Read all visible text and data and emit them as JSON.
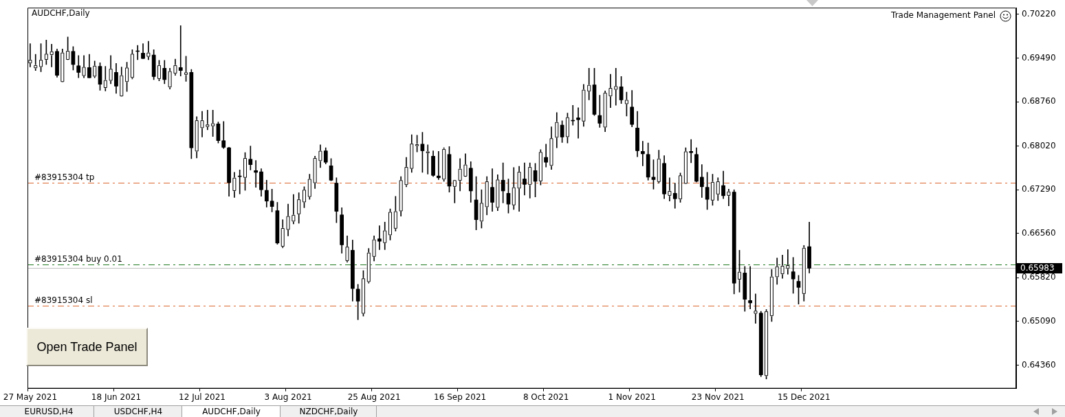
{
  "chart_data": {
    "type": "candlestick",
    "title": "AUDCHF,Daily",
    "categories": [
      "27 May 2021",
      null,
      null,
      null,
      null,
      null,
      null,
      null,
      null,
      null,
      null,
      null,
      null,
      null,
      null,
      null,
      "18 Jun 2021",
      null,
      null,
      null,
      null,
      null,
      null,
      null,
      null,
      null,
      null,
      null,
      null,
      null,
      null,
      null,
      "12 Jul 2021",
      null,
      null,
      null,
      null,
      null,
      null,
      null,
      null,
      null,
      null,
      null,
      null,
      null,
      null,
      null,
      "3 Aug 2021",
      null,
      null,
      null,
      null,
      null,
      null,
      null,
      null,
      null,
      null,
      null,
      null,
      null,
      null,
      null,
      "25 Aug 2021",
      null,
      null,
      null,
      null,
      null,
      null,
      null,
      null,
      null,
      null,
      null,
      null,
      null,
      null,
      null,
      "16 Sep 2021",
      null,
      null,
      null,
      null,
      null,
      null,
      null,
      null,
      null,
      null,
      null,
      null,
      null,
      null,
      null,
      "8 Oct 2021",
      null,
      null,
      null,
      null,
      null,
      null,
      null,
      null,
      null,
      null,
      null,
      null,
      null,
      null,
      null,
      "1 Nov 2021",
      null,
      null,
      null,
      null,
      null,
      null,
      null,
      null,
      null,
      null,
      null,
      null,
      null,
      null,
      null,
      "23 Nov 2021",
      null,
      null,
      null,
      null,
      null,
      null,
      null,
      null,
      null,
      null,
      null,
      null,
      null,
      null,
      null,
      "15 Dec 2021",
      null,
      null,
      null,
      null,
      null,
      null,
      null,
      null,
      null,
      null,
      null,
      null,
      null,
      null,
      null,
      null,
      null,
      null,
      null,
      null,
      null,
      null,
      null,
      null,
      null,
      null,
      null,
      null,
      null,
      null,
      null,
      null,
      null,
      null,
      null,
      null,
      null,
      null,
      null
    ],
    "ohlc": [
      [
        0.694,
        0.6973,
        0.6934,
        0.6946
      ],
      [
        0.6932,
        0.6955,
        0.6928,
        0.6937
      ],
      [
        0.6934,
        0.6973,
        0.6926,
        0.6946
      ],
      [
        0.6946,
        0.6979,
        0.6938,
        0.6956
      ],
      [
        0.6954,
        0.6972,
        0.6934,
        0.696
      ],
      [
        0.696,
        0.6964,
        0.6917,
        0.692
      ],
      [
        0.6909,
        0.6964,
        0.6909,
        0.6958
      ],
      [
        0.6946,
        0.6984,
        0.6946,
        0.6961
      ],
      [
        0.696,
        0.6968,
        0.6929,
        0.6938
      ],
      [
        0.6936,
        0.6953,
        0.6916,
        0.6925
      ],
      [
        0.6919,
        0.6953,
        0.6916,
        0.6934
      ],
      [
        0.6933,
        0.6955,
        0.6916,
        0.6916
      ],
      [
        0.6918,
        0.6944,
        0.6916,
        0.6936
      ],
      [
        0.6935,
        0.6941,
        0.6895,
        0.6905
      ],
      [
        0.6899,
        0.6935,
        0.6894,
        0.6912
      ],
      [
        0.6911,
        0.6953,
        0.6906,
        0.6931
      ],
      [
        0.6925,
        0.694,
        0.689,
        0.6902
      ],
      [
        0.6885,
        0.6934,
        0.6885,
        0.692
      ],
      [
        0.6909,
        0.6942,
        0.6893,
        0.6933
      ],
      [
        0.6916,
        0.6963,
        0.6914,
        0.6956
      ],
      [
        0.6961,
        0.697,
        0.6946,
        0.696
      ],
      [
        0.6957,
        0.6973,
        0.6948,
        0.6948
      ],
      [
        0.6951,
        0.6977,
        0.6946,
        0.6958
      ],
      [
        0.6954,
        0.6963,
        0.6913,
        0.6918
      ],
      [
        0.6914,
        0.6945,
        0.6911,
        0.6937
      ],
      [
        0.6932,
        0.6945,
        0.6906,
        0.6913
      ],
      [
        0.69,
        0.6932,
        0.6897,
        0.6927
      ],
      [
        0.6923,
        0.6947,
        0.692,
        0.6937
      ],
      [
        0.6933,
        0.7003,
        0.6919,
        0.6928
      ],
      [
        0.6921,
        0.6952,
        0.691,
        0.6925
      ],
      [
        0.6925,
        0.693,
        0.6781,
        0.6799
      ],
      [
        0.6793,
        0.6851,
        0.6782,
        0.6845
      ],
      [
        0.6832,
        0.686,
        0.6817,
        0.6845
      ],
      [
        0.6834,
        0.6862,
        0.6829,
        0.6838
      ],
      [
        0.6835,
        0.6862,
        0.6818,
        0.684
      ],
      [
        0.6839,
        0.6842,
        0.6807,
        0.6811
      ],
      [
        0.6811,
        0.6843,
        0.6798,
        0.68
      ],
      [
        0.6799,
        0.68,
        0.6718,
        0.6741
      ],
      [
        0.6727,
        0.6758,
        0.6716,
        0.6749
      ],
      [
        0.6752,
        0.6762,
        0.6722,
        0.6751
      ],
      [
        0.6749,
        0.6791,
        0.6728,
        0.6782
      ],
      [
        0.678,
        0.6802,
        0.6762,
        0.6771
      ],
      [
        0.6761,
        0.6778,
        0.6733,
        0.6758
      ],
      [
        0.6759,
        0.6764,
        0.6718,
        0.6729
      ],
      [
        0.6728,
        0.6745,
        0.67,
        0.671
      ],
      [
        0.671,
        0.673,
        0.6692,
        0.6701
      ],
      [
        0.6694,
        0.6708,
        0.6638,
        0.664
      ],
      [
        0.6634,
        0.6679,
        0.6632,
        0.6665
      ],
      [
        0.6662,
        0.6705,
        0.6652,
        0.6685
      ],
      [
        0.6676,
        0.6721,
        0.6672,
        0.6687
      ],
      [
        0.6688,
        0.6724,
        0.6673,
        0.6713
      ],
      [
        0.6708,
        0.6734,
        0.6699,
        0.6729
      ],
      [
        0.6717,
        0.6755,
        0.6713,
        0.6747
      ],
      [
        0.674,
        0.6785,
        0.6731,
        0.6782
      ],
      [
        0.6777,
        0.6804,
        0.6766,
        0.6794
      ],
      [
        0.6794,
        0.6799,
        0.6772,
        0.6775
      ],
      [
        0.6769,
        0.6781,
        0.6744,
        0.6745
      ],
      [
        0.674,
        0.6749,
        0.6674,
        0.6693
      ],
      [
        0.6687,
        0.6699,
        0.6623,
        0.6637
      ],
      [
        0.661,
        0.6652,
        0.6608,
        0.6634
      ],
      [
        0.6628,
        0.6645,
        0.6543,
        0.6564
      ],
      [
        0.6563,
        0.6571,
        0.6512,
        0.6543
      ],
      [
        0.6522,
        0.6594,
        0.6518,
        0.6581
      ],
      [
        0.6575,
        0.6631,
        0.6573,
        0.6624
      ],
      [
        0.6617,
        0.6652,
        0.661,
        0.6646
      ],
      [
        0.6647,
        0.6669,
        0.6629,
        0.6643
      ],
      [
        0.664,
        0.6675,
        0.6629,
        0.6661
      ],
      [
        0.6653,
        0.6697,
        0.6645,
        0.6692
      ],
      [
        0.6664,
        0.6718,
        0.666,
        0.6693
      ],
      [
        0.6693,
        0.6751,
        0.6685,
        0.6745
      ],
      [
        0.6737,
        0.6783,
        0.6734,
        0.6767
      ],
      [
        0.6764,
        0.6821,
        0.6758,
        0.6806
      ],
      [
        0.6802,
        0.682,
        0.6792,
        0.6805
      ],
      [
        0.6805,
        0.6825,
        0.6758,
        0.6794
      ],
      [
        0.679,
        0.6804,
        0.6755,
        0.6793
      ],
      [
        0.6785,
        0.6794,
        0.6751,
        0.6753
      ],
      [
        0.6752,
        0.6793,
        0.6746,
        0.6749
      ],
      [
        0.6746,
        0.6799,
        0.6743,
        0.6797
      ],
      [
        0.6788,
        0.6801,
        0.6725,
        0.6735
      ],
      [
        0.6734,
        0.6745,
        0.6707,
        0.6745
      ],
      [
        0.6744,
        0.6781,
        0.6727,
        0.6764
      ],
      [
        0.6751,
        0.6789,
        0.6751,
        0.6771
      ],
      [
        0.6765,
        0.6776,
        0.6708,
        0.6727
      ],
      [
        0.6712,
        0.6751,
        0.6662,
        0.6679
      ],
      [
        0.6676,
        0.6729,
        0.6665,
        0.6707
      ],
      [
        0.67,
        0.6751,
        0.6687,
        0.6743
      ],
      [
        0.6733,
        0.6764,
        0.6693,
        0.6708
      ],
      [
        0.6699,
        0.6754,
        0.6694,
        0.6746
      ],
      [
        0.6745,
        0.6774,
        0.6707,
        0.6727
      ],
      [
        0.6723,
        0.6747,
        0.669,
        0.6705
      ],
      [
        0.6703,
        0.6766,
        0.6696,
        0.6733
      ],
      [
        0.6731,
        0.6768,
        0.6693,
        0.6759
      ],
      [
        0.6747,
        0.6774,
        0.672,
        0.6738
      ],
      [
        0.6737,
        0.6774,
        0.6715,
        0.6767
      ],
      [
        0.6761,
        0.6773,
        0.6717,
        0.6743
      ],
      [
        0.6743,
        0.6796,
        0.6737,
        0.6792
      ],
      [
        0.6783,
        0.6805,
        0.6767,
        0.6775
      ],
      [
        0.6769,
        0.6834,
        0.6763,
        0.6815
      ],
      [
        0.6816,
        0.6858,
        0.6799,
        0.6842
      ],
      [
        0.6837,
        0.6844,
        0.6808,
        0.6817
      ],
      [
        0.6817,
        0.6857,
        0.6807,
        0.685
      ],
      [
        0.6845,
        0.687,
        0.6837,
        0.6844
      ],
      [
        0.6849,
        0.6866,
        0.6815,
        0.6846
      ],
      [
        0.6843,
        0.6905,
        0.6835,
        0.6896
      ],
      [
        0.6893,
        0.6932,
        0.6879,
        0.6904
      ],
      [
        0.6904,
        0.6932,
        0.6853,
        0.6855
      ],
      [
        0.6853,
        0.6887,
        0.6833,
        0.684
      ],
      [
        0.6833,
        0.6894,
        0.6826,
        0.6891
      ],
      [
        0.6885,
        0.6922,
        0.6866,
        0.6899
      ],
      [
        0.6896,
        0.6932,
        0.687,
        0.6902
      ],
      [
        0.6901,
        0.6918,
        0.6873,
        0.6879
      ],
      [
        0.6872,
        0.6892,
        0.6852,
        0.6879
      ],
      [
        0.6867,
        0.6895,
        0.6834,
        0.6838
      ],
      [
        0.6832,
        0.686,
        0.6784,
        0.6794
      ],
      [
        0.6793,
        0.681,
        0.6769,
        0.6789
      ],
      [
        0.6788,
        0.6807,
        0.6745,
        0.675
      ],
      [
        0.675,
        0.6779,
        0.673,
        0.6746
      ],
      [
        0.6742,
        0.6795,
        0.674,
        0.6781
      ],
      [
        0.6773,
        0.6786,
        0.6714,
        0.6722
      ],
      [
        0.6719,
        0.6749,
        0.671,
        0.6727
      ],
      [
        0.6723,
        0.674,
        0.6698,
        0.6714
      ],
      [
        0.6713,
        0.6757,
        0.6708,
        0.6753
      ],
      [
        0.6739,
        0.6799,
        0.6739,
        0.6793
      ],
      [
        0.6793,
        0.6813,
        0.6774,
        0.6791
      ],
      [
        0.6788,
        0.6799,
        0.6742,
        0.6743
      ],
      [
        0.675,
        0.6771,
        0.6716,
        0.6734
      ],
      [
        0.6733,
        0.6758,
        0.6696,
        0.6713
      ],
      [
        0.6711,
        0.6755,
        0.6703,
        0.6742
      ],
      [
        0.6721,
        0.6749,
        0.6711,
        0.6743
      ],
      [
        0.6736,
        0.676,
        0.6714,
        0.6719
      ],
      [
        0.6719,
        0.673,
        0.6702,
        0.6726
      ],
      [
        0.6725,
        0.6729,
        0.6555,
        0.6573
      ],
      [
        0.6579,
        0.6628,
        0.6558,
        0.6592
      ],
      [
        0.659,
        0.6601,
        0.6526,
        0.6546
      ],
      [
        0.6544,
        0.6601,
        0.653,
        0.654
      ],
      [
        0.6522,
        0.6555,
        0.6506,
        0.6527
      ],
      [
        0.6523,
        0.6526,
        0.6417,
        0.642
      ],
      [
        0.6418,
        0.6529,
        0.6413,
        0.6526
      ],
      [
        0.6518,
        0.6596,
        0.6509,
        0.6584
      ],
      [
        0.6583,
        0.6615,
        0.6571,
        0.6601
      ],
      [
        0.6588,
        0.662,
        0.6581,
        0.6602
      ],
      [
        0.6597,
        0.6629,
        0.6588,
        0.6603
      ],
      [
        0.6592,
        0.6616,
        0.6556,
        0.658
      ],
      [
        0.6576,
        0.6586,
        0.6538,
        0.6566
      ],
      [
        0.6555,
        0.6636,
        0.6543,
        0.6632
      ],
      [
        0.6634,
        0.6675,
        0.659,
        0.6598
      ],
      null,
      null,
      null,
      null,
      null,
      null,
      null,
      null,
      null,
      null,
      null,
      null,
      null,
      null,
      null,
      null,
      null,
      null,
      null,
      null,
      null,
      null,
      null,
      null,
      null,
      null,
      null,
      null,
      null,
      null,
      null,
      null,
      null,
      null,
      null,
      null,
      null,
      null
    ],
    "ylim": [
      0.6397,
      0.7033
    ],
    "yticks": [
      {
        "value": 0.7022,
        "label": "0.70220"
      },
      {
        "value": 0.6949,
        "label": "0.69490"
      },
      {
        "value": 0.6876,
        "label": "0.68760"
      },
      {
        "value": 0.6802,
        "label": "0.68020"
      },
      {
        "value": 0.6729,
        "label": "0.67290"
      },
      {
        "value": 0.6656,
        "label": "0.66560"
      },
      {
        "value": 0.6582,
        "label": "0.65820"
      },
      {
        "value": 0.6509,
        "label": "0.65090"
      },
      {
        "value": 0.6436,
        "label": "0.64360"
      }
    ],
    "grid": false,
    "legend": false,
    "ref_lines": [
      {
        "axis": "y",
        "value": 0.6741,
        "label": "#83915304 tp",
        "color": "#d9622b",
        "line_style": "dashed"
      },
      {
        "axis": "y",
        "value": 0.6604,
        "label": "#83915304 buy 0.01",
        "color": "#1f7a1f",
        "line_style": "dashed"
      },
      {
        "axis": "y",
        "value": 0.6535,
        "label": "#83915304 sl",
        "color": "#d9622b",
        "line_style": "dashed"
      },
      {
        "axis": "y",
        "value": 0.65983,
        "label": "0.65983",
        "color": "#c0c0c0",
        "line_style": "solid"
      }
    ],
    "annotations": [
      "Trade Management Panel",
      "Open Trade Panel",
      "EURUSD,H4",
      "USDCHF,H4",
      "AUDCHF,Daily",
      "NZDCHF,Daily"
    ]
  }
}
